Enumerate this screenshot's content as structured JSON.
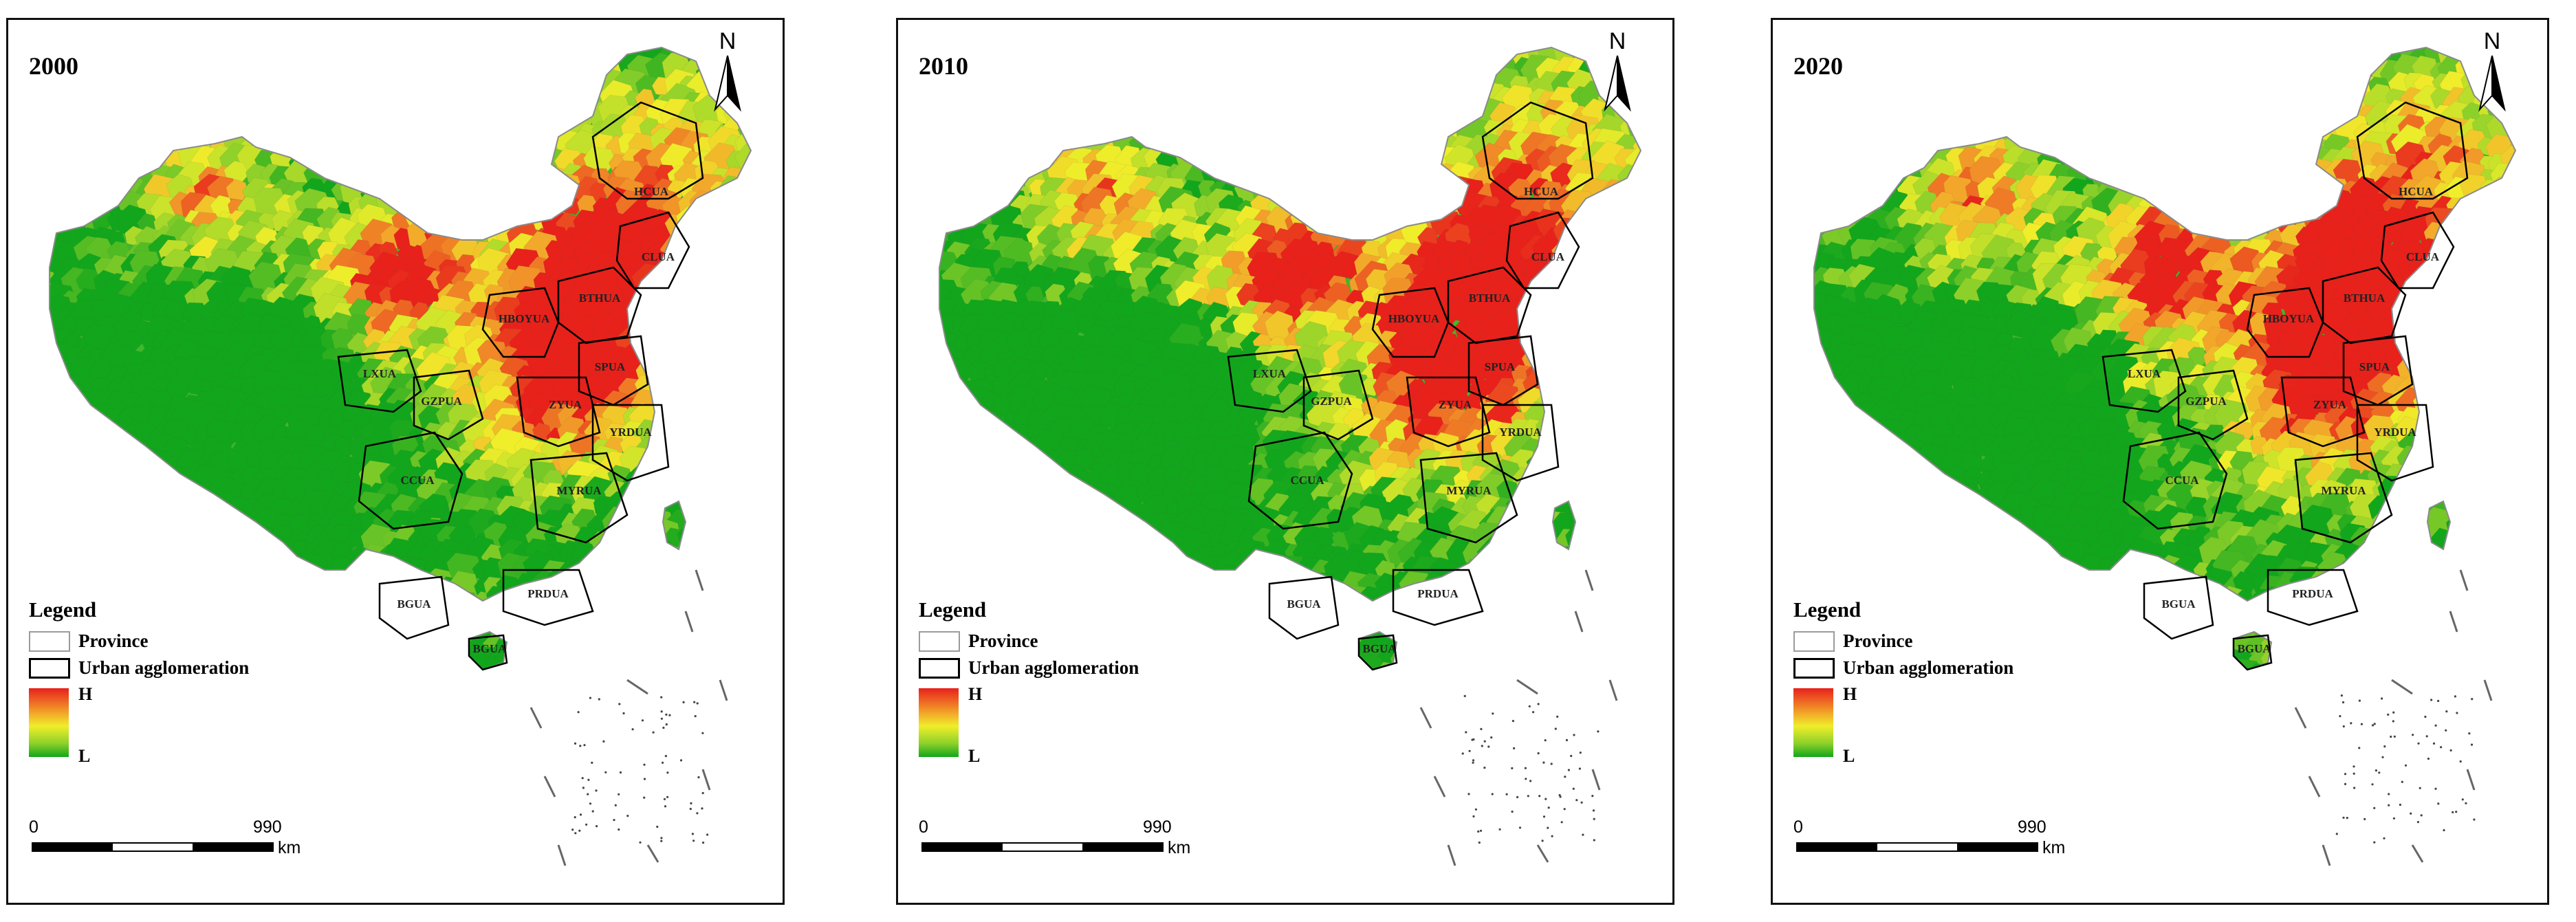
{
  "panels": [
    {
      "year": "2000"
    },
    {
      "year": "2010"
    },
    {
      "year": "2020"
    }
  ],
  "north_label": "N",
  "legend": {
    "title": "Legend",
    "province_label": "Province",
    "ua_label": "Urban agglomeration",
    "high_label": "H",
    "low_label": "L",
    "ramp_colors": [
      "#e8211b",
      "#f2a22a",
      "#f0ee2a",
      "#8fd12a",
      "#12a61c"
    ]
  },
  "scale_bar": {
    "start": "0",
    "end": "990",
    "unit": "km"
  },
  "urban_agglomerations": [
    "HCUA",
    "CLUA",
    "BTHUA",
    "HBOYUA",
    "SPUA",
    "LXUA",
    "GZPUA",
    "ZYUA",
    "YRDUA",
    "CCUA",
    "MYRUA",
    "BGUA",
    "PRDUA",
    "BGUA"
  ]
}
